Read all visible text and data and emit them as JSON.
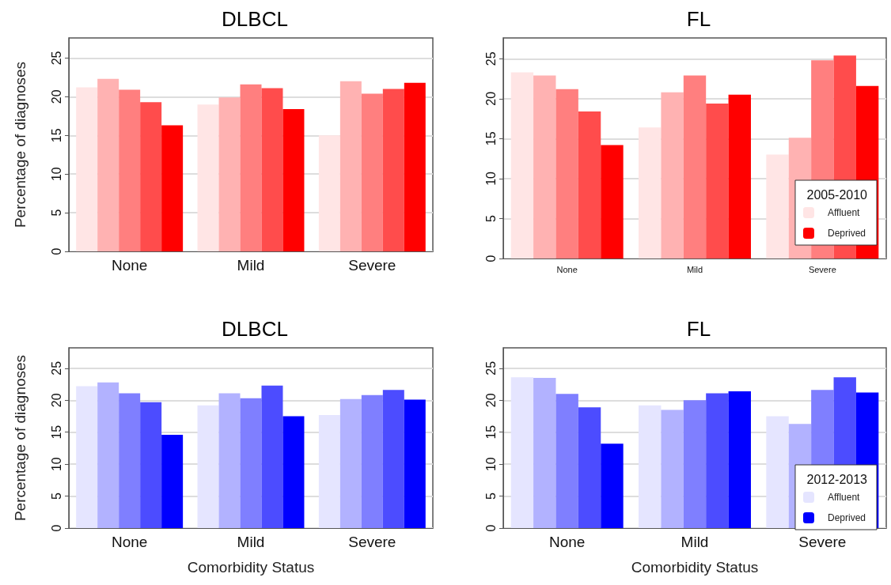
{
  "chart_data": [
    {
      "type": "bar",
      "title": "DLBCL",
      "ylabel": "Percentage of diagnoses",
      "categories": [
        "None",
        "Mild",
        "Severe"
      ],
      "ylim": [
        0,
        27.6
      ],
      "yticks": [
        0,
        5,
        10,
        15,
        20,
        25
      ],
      "grid": "y",
      "legend": false,
      "series": [
        {
          "color": "#ffe5e5",
          "values": [
            21.2,
            19.0,
            15.0
          ]
        },
        {
          "color": "#ffb2b2",
          "values": [
            22.3,
            19.9,
            22.0
          ]
        },
        {
          "color": "#ff7f7f",
          "values": [
            20.9,
            21.6,
            20.4
          ]
        },
        {
          "color": "#ff4c4c",
          "values": [
            19.3,
            21.1,
            21.0
          ]
        },
        {
          "color": "#ff0000",
          "values": [
            16.3,
            18.4,
            21.8
          ]
        }
      ]
    },
    {
      "type": "bar",
      "title": "FL",
      "categories": [
        "None",
        "Mild",
        "Severe"
      ],
      "ylim": [
        0,
        27.6
      ],
      "yticks": [
        0,
        5,
        10,
        15,
        20,
        25
      ],
      "grid": "y",
      "legend": "bottom right",
      "legend_title": "2005-2010",
      "series": [
        {
          "name": "Affluent",
          "color": "#ffe5e5",
          "values": [
            23.3,
            16.4,
            13.0
          ]
        },
        {
          "color": "#ffb2b2",
          "values": [
            22.9,
            20.8,
            15.1
          ]
        },
        {
          "color": "#ff7f7f",
          "values": [
            21.2,
            22.9,
            24.8
          ]
        },
        {
          "color": "#ff4c4c",
          "values": [
            18.4,
            19.4,
            25.4
          ]
        },
        {
          "name": "Deprived",
          "color": "#ff0000",
          "values": [
            14.2,
            20.5,
            21.6
          ]
        }
      ]
    },
    {
      "type": "bar",
      "title": "DLBCL",
      "ylabel": "Percentage of diagnoses",
      "xlabel": "Comorbidity Status",
      "categories": [
        "None",
        "Mild",
        "Severe"
      ],
      "ylim": [
        0,
        28.2
      ],
      "yticks": [
        0,
        5,
        10,
        15,
        20,
        25
      ],
      "grid": "y",
      "legend": false,
      "series": [
        {
          "color": "#e5e5ff",
          "values": [
            22.2,
            19.2,
            17.7
          ]
        },
        {
          "color": "#b2b2ff",
          "values": [
            22.8,
            21.1,
            20.2
          ]
        },
        {
          "color": "#7f7fff",
          "values": [
            21.1,
            20.3,
            20.8
          ]
        },
        {
          "color": "#4c4cff",
          "values": [
            19.7,
            22.3,
            21.6
          ]
        },
        {
          "color": "#0000ff",
          "values": [
            14.6,
            17.5,
            20.1
          ]
        }
      ]
    },
    {
      "type": "bar",
      "title": "FL",
      "xlabel": "Comorbidity Status",
      "categories": [
        "None",
        "Mild",
        "Severe"
      ],
      "ylim": [
        0,
        28.2
      ],
      "yticks": [
        0,
        5,
        10,
        15,
        20,
        25
      ],
      "grid": "y",
      "legend": "bottom right",
      "legend_title": "2012-2013",
      "series": [
        {
          "name": "Affluent",
          "color": "#e5e5ff",
          "values": [
            23.6,
            19.2,
            17.5
          ]
        },
        {
          "color": "#b2b2ff",
          "values": [
            23.5,
            18.5,
            16.3
          ]
        },
        {
          "color": "#7f7fff",
          "values": [
            21.0,
            20.0,
            21.6
          ]
        },
        {
          "color": "#4c4cff",
          "values": [
            18.9,
            21.1,
            23.6
          ]
        },
        {
          "name": "Deprived",
          "color": "#0000ff",
          "values": [
            13.2,
            21.4,
            21.2
          ]
        }
      ]
    }
  ]
}
